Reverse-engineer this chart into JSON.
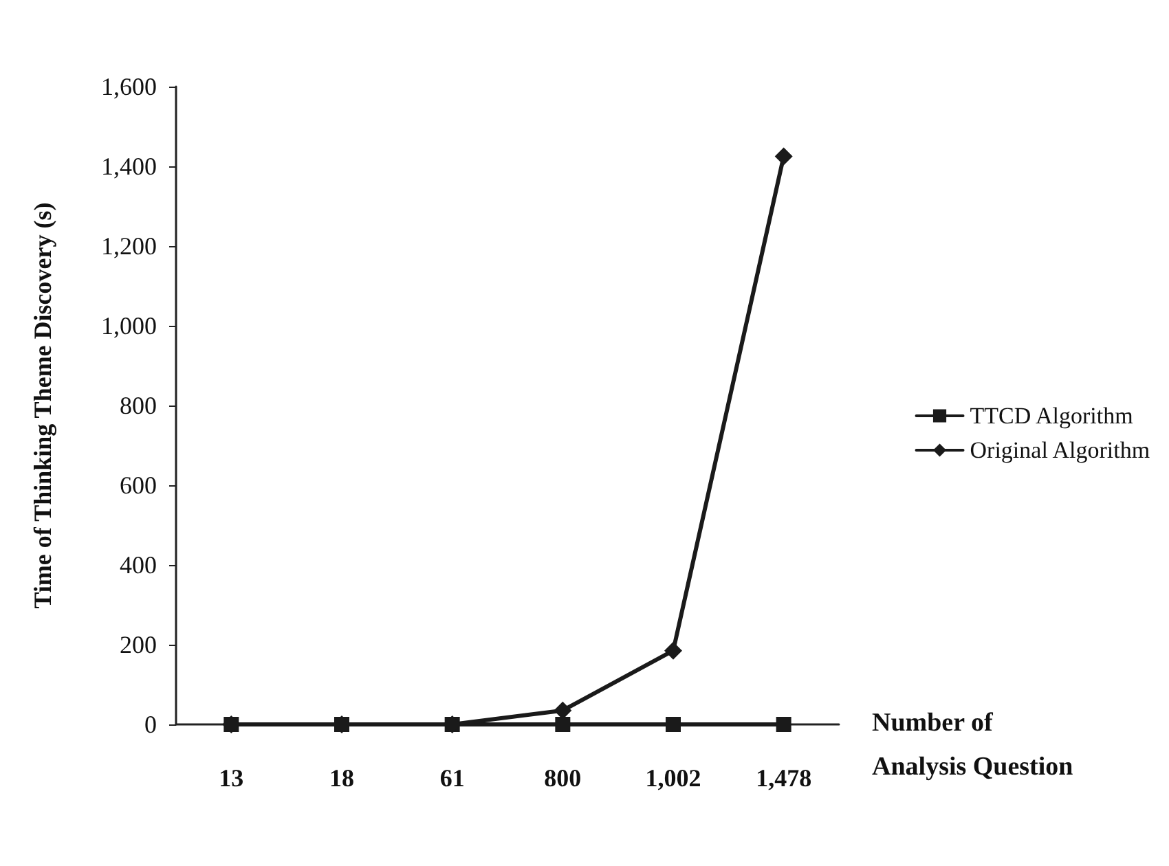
{
  "chart_data": {
    "type": "line",
    "xlabel": "Number of Analysis Question",
    "ylabel": "Time of Thinking Theme Discovery (s)",
    "categories": [
      "13",
      "18",
      "61",
      "800",
      "1,002",
      "1,478"
    ],
    "ylim": [
      0,
      1600
    ],
    "yticks": [
      0,
      {
        "value": 200,
        "label": "200"
      },
      {
        "value": 400,
        "label": "400"
      },
      {
        "value": 600,
        "label": "600"
      },
      {
        "value": 800,
        "label": "800"
      },
      {
        "value": 1000,
        "label": "1,000"
      },
      {
        "value": 1200,
        "label": "1,200"
      },
      {
        "value": 1400,
        "label": "1,400"
      },
      {
        "value": 1600,
        "label": "1,600"
      }
    ],
    "grid": false,
    "legend": "right",
    "series": [
      {
        "name": "TTCD Algorithm",
        "color": "#1a1a1a",
        "marker": "square",
        "values": [
          0,
          0,
          0,
          0,
          0,
          0
        ]
      },
      {
        "name": "Original Algorithm",
        "color": "#1a1a1a",
        "marker": "diamond",
        "values": [
          0,
          0,
          0,
          35,
          185,
          1425
        ]
      }
    ]
  }
}
